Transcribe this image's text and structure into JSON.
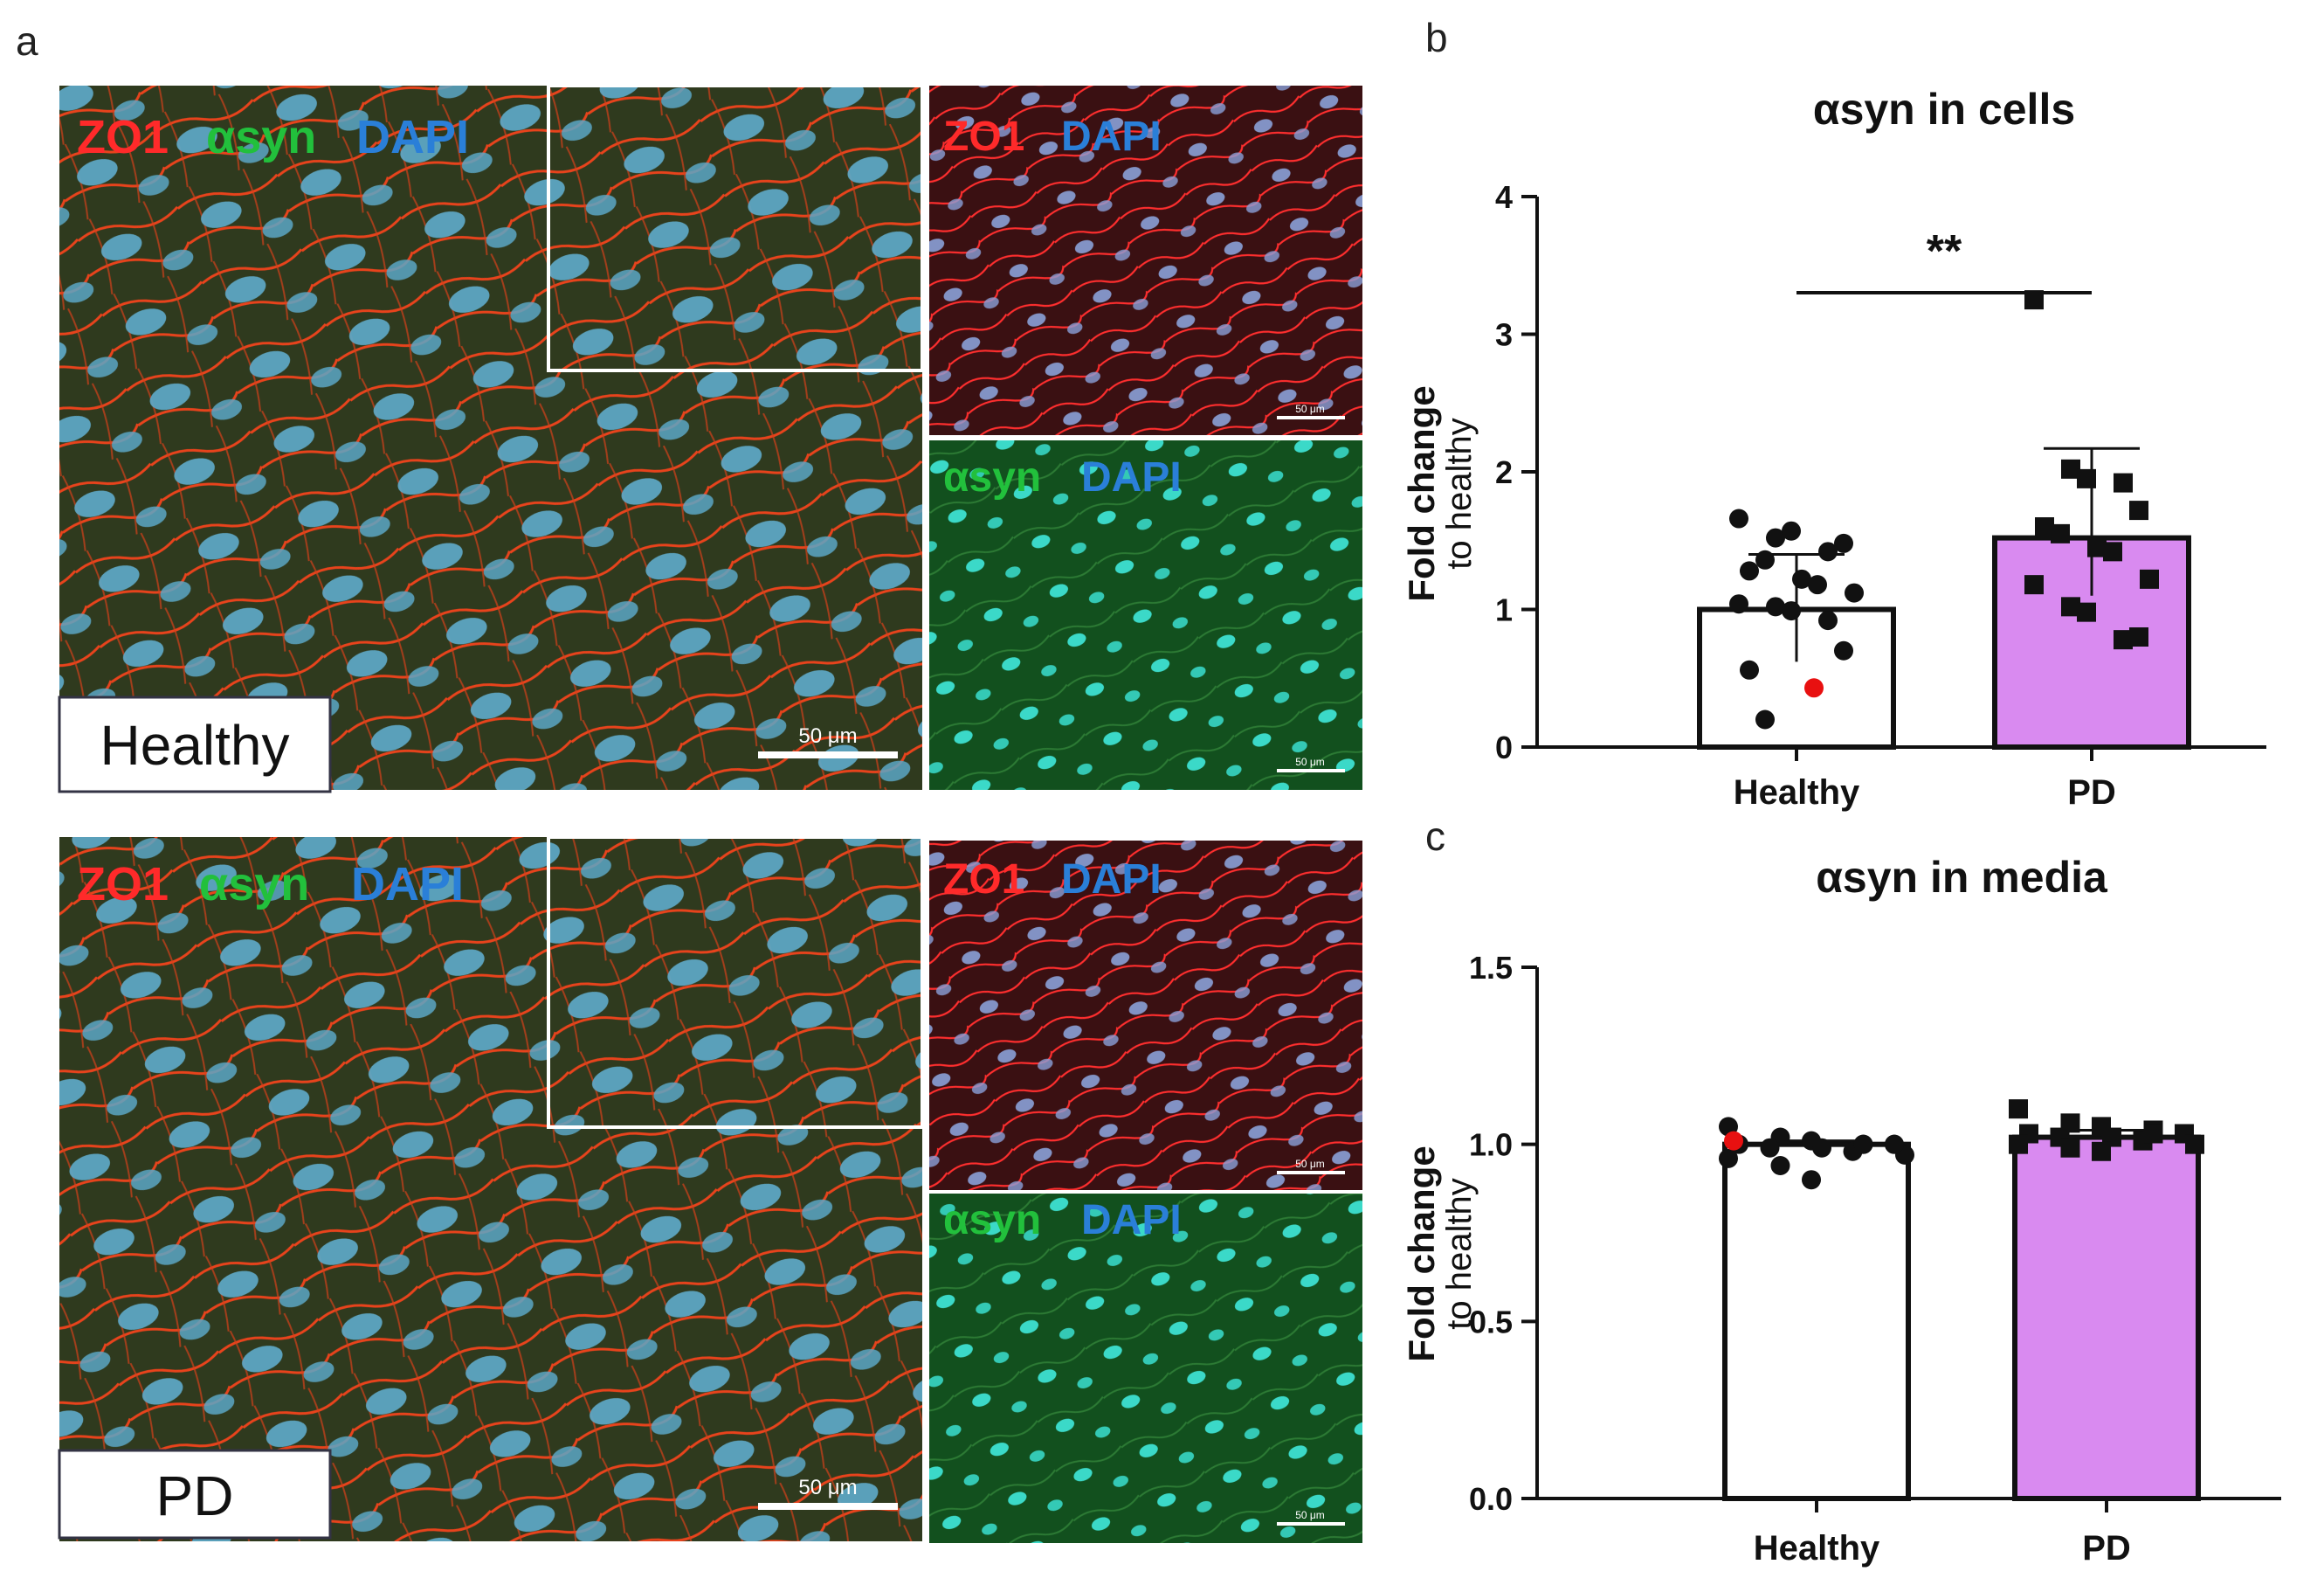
{
  "panels": {
    "a": {
      "letter": "a",
      "top": {
        "condition": "Healthy",
        "merged_channels": [
          "ZO1",
          "αsyn",
          "DAPI"
        ],
        "ch_zo1_dapi": [
          "ZO1",
          "DAPI"
        ],
        "ch_asyn_dapi": [
          "αsyn",
          "DAPI"
        ],
        "scale_bar": "50 μm",
        "scale_bar_small": "50 μm"
      },
      "bottom": {
        "condition": "PD",
        "merged_channels": [
          "ZO1",
          "αsyn",
          "DAPI"
        ],
        "ch_zo1_dapi": [
          "ZO1",
          "DAPI"
        ],
        "ch_asyn_dapi": [
          "αsyn",
          "DAPI"
        ],
        "scale_bar": "50 μm",
        "scale_bar_small": "50 μm"
      }
    },
    "b": {
      "letter": "b"
    },
    "c": {
      "letter": "c"
    }
  },
  "colors": {
    "zo1_red": "#ff2a2a",
    "asyn_green": "#22c03c",
    "dapi_blue": "#2a7fd8",
    "healthy_bar": "#ffffff",
    "pd_bar": "#d98af0",
    "highlight_point": "#e81010"
  },
  "chart_data": [
    {
      "id": "b",
      "type": "bar",
      "title": "αsyn in cells",
      "ylabel_line1": "Fold change",
      "ylabel_line2": "to healthy",
      "xlabel": "",
      "categories": [
        "Healthy",
        "PD"
      ],
      "values": [
        1.0,
        1.52
      ],
      "error_upper": [
        1.4,
        2.17
      ],
      "error_lower": [
        0.62,
        1.1
      ],
      "ylim": [
        0,
        4
      ],
      "yticks": [
        "0",
        "1",
        "2",
        "3",
        "4"
      ],
      "significance": "**",
      "points": [
        {
          "category": "Healthy",
          "marker": "circle",
          "values": [
            1.66,
            1.52,
            1.57,
            1.42,
            1.48,
            1.28,
            1.36,
            1.22,
            1.18,
            1.12,
            1.04,
            1.02,
            0.99,
            0.92,
            0.7,
            0.56,
            0.2
          ]
        },
        {
          "category": "Healthy",
          "marker": "circle-highlight",
          "values": [
            0.43
          ]
        },
        {
          "category": "PD",
          "marker": "square",
          "values": [
            3.25,
            2.02,
            1.95,
            1.92,
            1.72,
            1.6,
            1.55,
            1.45,
            1.42,
            1.22,
            1.18,
            1.02,
            0.98,
            0.78,
            0.8
          ]
        }
      ]
    },
    {
      "id": "c",
      "type": "bar",
      "title": "αsyn in media",
      "ylabel_line1": "Fold change",
      "ylabel_line2": "to healthy",
      "xlabel": "",
      "categories": [
        "Healthy",
        "PD"
      ],
      "values": [
        1.0,
        1.02
      ],
      "error_upper": [
        1.01,
        1.04
      ],
      "error_lower": [
        0.99,
        1.0
      ],
      "ylim": [
        0,
        1.5
      ],
      "yticks": [
        "0.0",
        "0.5",
        "1.0",
        "1.5"
      ],
      "points": [
        {
          "category": "Healthy",
          "marker": "circle",
          "values": [
            1.05,
            1.02,
            1.01,
            1.0,
            1.0,
            1.0,
            0.99,
            0.99,
            0.98,
            0.97,
            0.96,
            0.94,
            0.9,
            1.0,
            1.0
          ]
        },
        {
          "category": "Healthy",
          "marker": "circle-highlight",
          "values": [
            1.01
          ]
        },
        {
          "category": "PD",
          "marker": "square",
          "values": [
            1.1,
            1.06,
            1.05,
            1.04,
            1.03,
            1.03,
            1.02,
            1.02,
            1.01,
            1.0,
            1.0,
            0.99,
            0.98,
            1.03
          ]
        }
      ]
    }
  ]
}
